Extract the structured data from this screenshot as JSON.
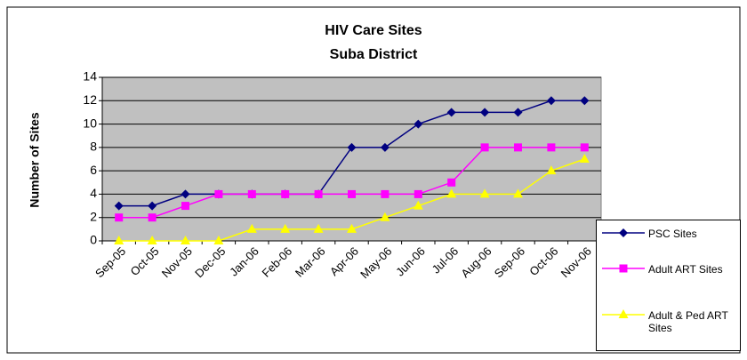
{
  "chart_data": {
    "type": "line",
    "title": "HIV Care Sites",
    "subtitle": "Suba District",
    "y_label": "Number of Sites",
    "categories": [
      "Sep-05",
      "Oct-05",
      "Nov-05",
      "Dec-05",
      "Jan-06",
      "Feb-06",
      "Mar-06",
      "Apr-06",
      "May-06",
      "Jun-06",
      "Jul-06",
      "Aug-06",
      "Sep-06",
      "Oct-06",
      "Nov-06"
    ],
    "series": [
      {
        "name": "PSC Sites",
        "color": "#000080",
        "marker": "diamond",
        "values": [
          3,
          3,
          4,
          4,
          4,
          4,
          4,
          8,
          8,
          10,
          11,
          11,
          11,
          12,
          12
        ]
      },
      {
        "name": "Adult ART Sites",
        "color": "#ff00ff",
        "marker": "square",
        "values": [
          2,
          2,
          3,
          4,
          4,
          4,
          4,
          4,
          4,
          4,
          5,
          8,
          8,
          8,
          8
        ]
      },
      {
        "name": "Adult & Ped ART Sites",
        "color": "#ffff00",
        "marker": "triangle",
        "values": [
          0,
          0,
          0,
          0,
          1,
          1,
          1,
          1,
          2,
          3,
          4,
          4,
          4,
          6,
          7
        ]
      }
    ],
    "ylim": [
      0,
      14
    ],
    "yticks": [
      0,
      2,
      4,
      6,
      8,
      10,
      12,
      14
    ],
    "grid": true,
    "legend": "right"
  }
}
